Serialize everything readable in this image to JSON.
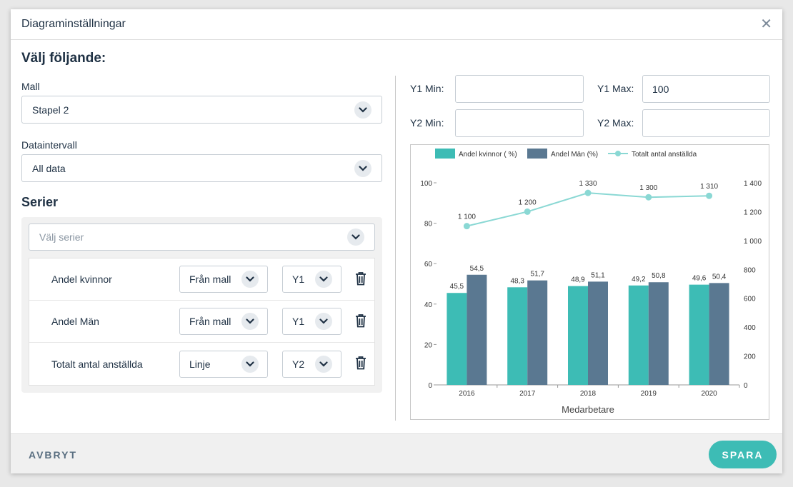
{
  "dialog": {
    "title": "Diagraminställningar",
    "close_icon": "close-icon"
  },
  "left": {
    "heading": "Välj följande:",
    "template_label": "Mall",
    "template_value": "Stapel 2",
    "interval_label": "Dataintervall",
    "interval_value": "All data",
    "series_heading": "Serier",
    "series_placeholder": "Välj serier",
    "series": [
      {
        "name": "Andel kvinnor",
        "type": "Från mall",
        "axis": "Y1"
      },
      {
        "name": "Andel Män",
        "type": "Från mall",
        "axis": "Y1"
      },
      {
        "name": "Totalt antal anställda",
        "type": "Linje",
        "axis": "Y2"
      }
    ]
  },
  "axes": {
    "y1_min_label": "Y1 Min:",
    "y1_min_value": "",
    "y1_max_label": "Y1 Max:",
    "y1_max_value": "100",
    "y2_min_label": "Y2 Min:",
    "y2_min_value": "",
    "y2_max_label": "Y2 Max:",
    "y2_max_value": ""
  },
  "footer": {
    "cancel_label": "AVBRYT",
    "save_label": "SPARA"
  },
  "colors": {
    "teal": "#3dbcb5",
    "slate": "#5a7891",
    "line": "#8ad8d4"
  },
  "chart_data": {
    "type": "bar",
    "categories": [
      "2016",
      "2017",
      "2018",
      "2019",
      "2020"
    ],
    "xlabel": "Medarbetare",
    "ylim_left": [
      0,
      100
    ],
    "ylim_right": [
      0,
      1400
    ],
    "yticks_left": [
      "0",
      "20",
      "40",
      "60",
      "80",
      "100"
    ],
    "yticks_right": [
      "0",
      "200",
      "400",
      "600",
      "800",
      "1 000",
      "1 200",
      "1 400"
    ],
    "legend_position": "top",
    "series": [
      {
        "name": "Andel kvinnor ( %)",
        "type": "bar",
        "axis": "y1",
        "values": [
          45.5,
          48.3,
          48.9,
          49.2,
          49.6
        ],
        "labels": [
          "45,5",
          "48,3",
          "48,9",
          "49,2",
          "49,6"
        ]
      },
      {
        "name": "Andel Män (%)",
        "type": "bar",
        "axis": "y1",
        "values": [
          54.5,
          51.7,
          51.1,
          50.8,
          50.4
        ],
        "labels": [
          "54,5",
          "51,7",
          "51,1",
          "50,8",
          "50,4"
        ]
      },
      {
        "name": "Totalt antal anställda",
        "type": "line",
        "axis": "y2",
        "values": [
          1100,
          1200,
          1330,
          1300,
          1310
        ],
        "labels": [
          "1 100",
          "1 200",
          "1 330",
          "1 300",
          "1 310"
        ]
      }
    ]
  }
}
